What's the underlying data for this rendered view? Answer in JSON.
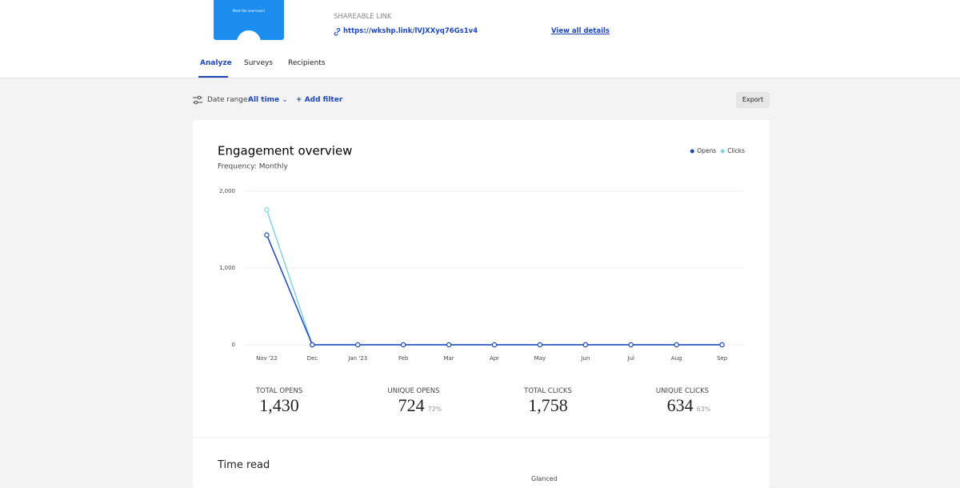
{
  "header": {
    "preview_text": "Meet the new team!",
    "shareable_link_label": "SHAREABLE LINK",
    "link": "https://wkshp.link/lVJXXyq76Gs1v4",
    "view_details": "View all details"
  },
  "tabs": [
    "Analyze",
    "Surveys",
    "Recipients"
  ],
  "toolbar": {
    "date_range_label": "Date range:",
    "date_range_value": "All time",
    "add_filter": "Add filter",
    "export": "Export"
  },
  "chart_data": {
    "type": "line",
    "title": "Engagement overview",
    "subtitle": "Frequency: Monthly",
    "categories": [
      "Nov '22",
      "Dec",
      "Jan '23",
      "Feb",
      "Mar",
      "Apr",
      "May",
      "Jun",
      "Jul",
      "Aug",
      "Sep"
    ],
    "series": [
      {
        "name": "Opens",
        "color": "#1d47b8",
        "values": [
          1430,
          0,
          0,
          0,
          0,
          0,
          0,
          0,
          0,
          0,
          0
        ]
      },
      {
        "name": "Clicks",
        "color": "#7fd3dc",
        "values": [
          1758,
          0,
          0,
          0,
          0,
          0,
          0,
          0,
          0,
          0,
          0
        ]
      }
    ],
    "ylim": [
      0,
      2000
    ],
    "yticks": [
      0,
      {
        "value": 1000,
        "label": "1,000"
      },
      {
        "value": 2000,
        "label": "2,000"
      }
    ],
    "grid": true,
    "legend": "top-right"
  },
  "stats": [
    {
      "label": "TOTAL OPENS",
      "value": "1,430"
    },
    {
      "label": "UNIQUE OPENS",
      "value": "724",
      "percent": "72%"
    },
    {
      "label": "TOTAL CLICKS",
      "value": "1,758"
    },
    {
      "label": "UNIQUE CLICKS",
      "value": "634",
      "percent": "63%"
    }
  ],
  "time_read": {
    "title": "Time read",
    "glanced": "Glanced"
  }
}
